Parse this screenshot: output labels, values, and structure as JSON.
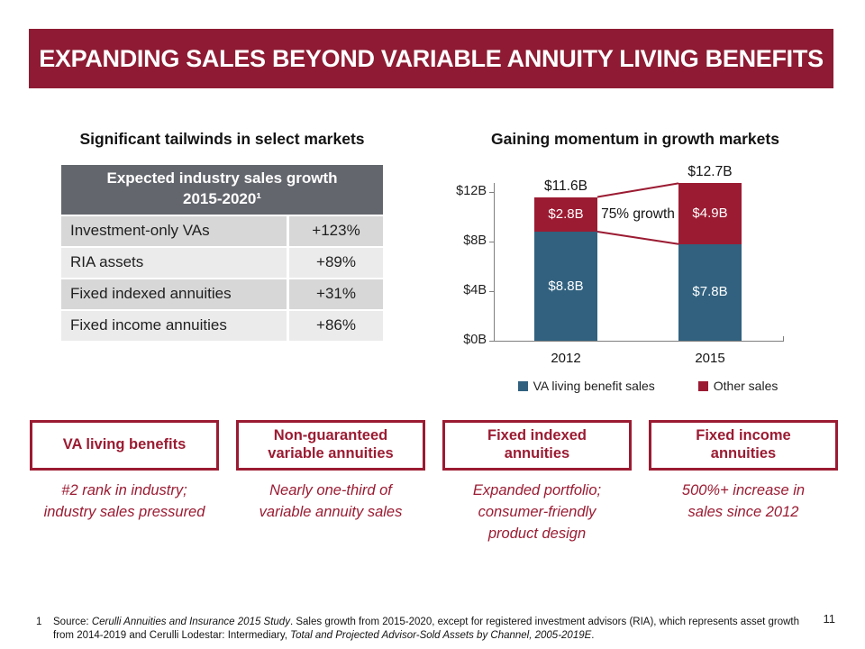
{
  "slide": {
    "title": "EXPANDING SALES BEYOND VARIABLE ANNUITY LIVING BENEFITS",
    "page_number": "11"
  },
  "colors": {
    "title_bar": "#8E1B33",
    "maroon": "#9B1B32",
    "blue": "#31617F",
    "table_header": "#63666D",
    "row_dark": "#D7D7D7",
    "row_light": "#EBEBEB",
    "axis": "#7F7F7F"
  },
  "left_panel": {
    "heading": "Significant tailwinds in select markets",
    "table": {
      "header": "Expected industry sales growth\n2015-2020¹",
      "rows": [
        {
          "label": "Investment-only VAs",
          "value": "+123%"
        },
        {
          "label": "RIA assets",
          "value": "+89%"
        },
        {
          "label": "Fixed indexed annuities",
          "value": "+31%"
        },
        {
          "label": "Fixed income annuities",
          "value": "+86%"
        }
      ]
    }
  },
  "right_panel": {
    "heading": "Gaining momentum in growth markets"
  },
  "chart_data": {
    "type": "stacked_bar",
    "title": "Gaining momentum in growth markets",
    "categories": [
      "2012",
      "2015"
    ],
    "series": [
      {
        "name": "VA living benefit sales",
        "color": "#31617F",
        "values": [
          8.8,
          7.8
        ],
        "labels": [
          "$8.8B",
          "$7.8B"
        ]
      },
      {
        "name": "Other sales",
        "color": "#9B1B32",
        "values": [
          2.8,
          4.9
        ],
        "labels": [
          "$2.8B",
          "$4.9B"
        ]
      }
    ],
    "totals": [
      11.6,
      12.7
    ],
    "total_labels": [
      "$11.6B",
      "$12.7B"
    ],
    "annotation": "75% growth",
    "y_axis": {
      "unit": "$B",
      "ticks": [
        {
          "label": "$12B",
          "value": 12
        },
        {
          "label": "$8B",
          "value": 8
        },
        {
          "label": "$4B",
          "value": 4
        },
        {
          "label": "$0B",
          "value": 0
        }
      ],
      "range": [
        0,
        12.7
      ]
    },
    "legend_position": "bottom",
    "grid": false
  },
  "cards": [
    {
      "title": "VA living benefits",
      "caption": "#2 rank in industry;\nindustry sales pressured"
    },
    {
      "title": "Non-guaranteed\nvariable annuities",
      "caption": "Nearly one-third of\nvariable annuity sales"
    },
    {
      "title": "Fixed indexed\nannuities",
      "caption": "Expanded portfolio;\nconsumer-friendly\nproduct design"
    },
    {
      "title": "Fixed income\nannuities",
      "caption": "500%+ increase in\nsales since 2012"
    }
  ],
  "footnote": {
    "number": "1",
    "parts": [
      {
        "text": "Source: ",
        "italic": false
      },
      {
        "text": "Cerulli Annuities and Insurance 2015 Study",
        "italic": true
      },
      {
        "text": ". Sales growth from 2015-2020, except for registered investment advisors (RIA), which represents asset growth from 2014-2019 and Cerulli Lodestar: Intermediary, ",
        "italic": false
      },
      {
        "text": "Total and Projected Advisor-Sold Assets by Channel, 2005-2019E",
        "italic": true
      },
      {
        "text": ".",
        "italic": false
      }
    ]
  }
}
